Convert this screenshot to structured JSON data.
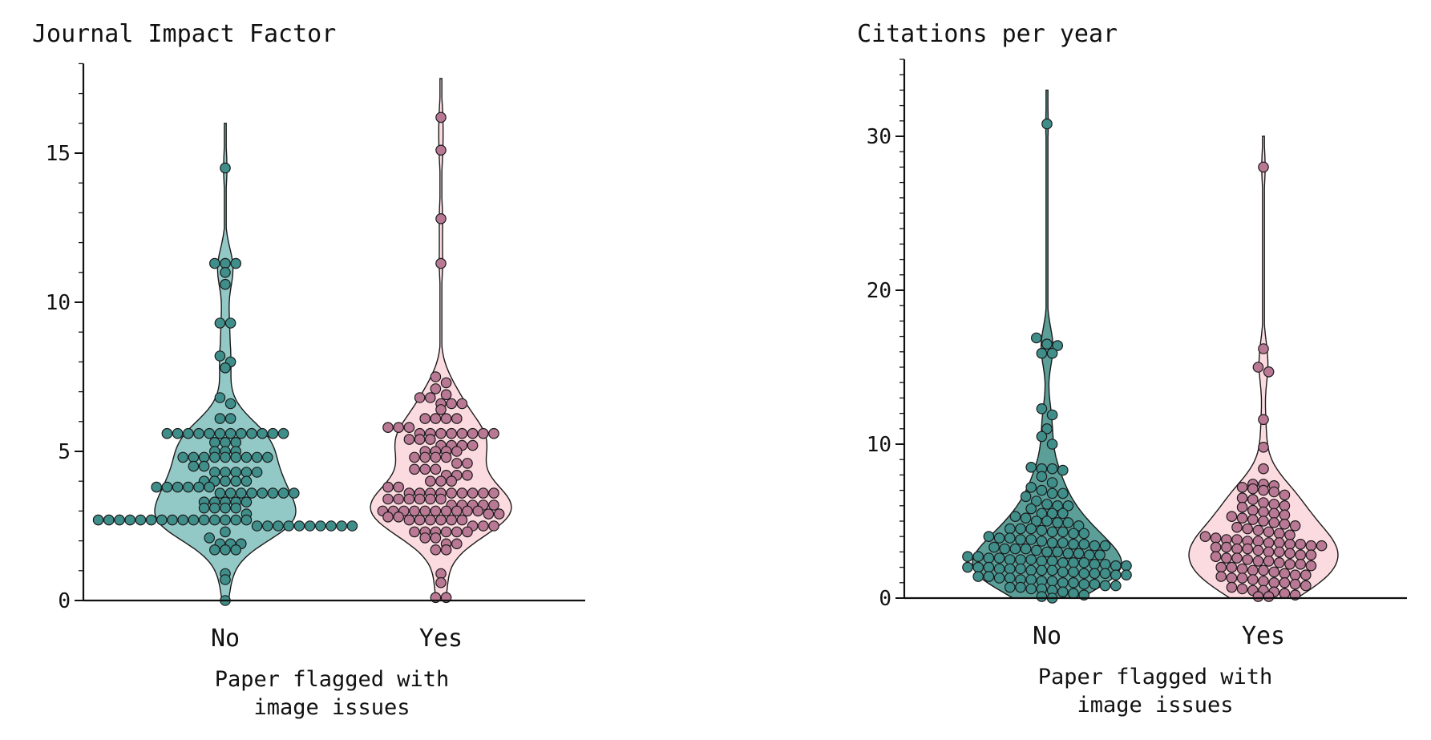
{
  "chart_data": [
    {
      "type": "violin-swarm",
      "title": "Journal Impact Factor",
      "xlabel": [
        "Paper flagged with",
        "image issues"
      ],
      "ylabel": "",
      "categories": [
        "No",
        "Yes"
      ],
      "yticks": [
        "0",
        "5",
        "10",
        "15"
      ],
      "ylim": [
        0,
        18
      ],
      "grid": false,
      "legend": "none",
      "colors": {
        "No": {
          "fill": "#92c9c6",
          "point": "#3f8e8a"
        },
        "Yes": {
          "fill": "#fcdbe0",
          "point": "#b97893"
        }
      },
      "series": [
        {
          "category": "No",
          "violin_extent": [
            0,
            16
          ],
          "values": [
            14.5,
            11.3,
            11.3,
            11.3,
            11.0,
            10.6,
            9.3,
            9.3,
            8.2,
            8.0,
            7.8,
            6.8,
            6.6,
            6.1,
            6.1,
            5.6,
            5.6,
            5.6,
            5.6,
            5.6,
            5.6,
            5.6,
            5.6,
            5.6,
            5.6,
            5.6,
            5.6,
            5.3,
            5.3,
            5.3,
            5.0,
            5.0,
            5.0,
            4.8,
            4.8,
            4.8,
            4.8,
            4.8,
            4.8,
            4.8,
            4.8,
            4.8,
            4.5,
            4.5,
            4.3,
            4.3,
            4.3,
            4.3,
            4.3,
            4.0,
            4.0,
            4.0,
            4.0,
            4.0,
            3.8,
            3.8,
            3.8,
            3.8,
            3.8,
            3.8,
            3.6,
            3.6,
            3.6,
            3.6,
            3.6,
            3.6,
            3.6,
            3.6,
            3.3,
            3.3,
            3.3,
            3.3,
            3.3,
            3.1,
            3.1,
            3.1,
            3.1,
            2.9,
            2.7,
            2.7,
            2.7,
            2.7,
            2.7,
            2.7,
            2.7,
            2.7,
            2.7,
            2.7,
            2.7,
            2.7,
            2.7,
            2.7,
            2.7,
            2.5,
            2.5,
            2.5,
            2.5,
            2.5,
            2.5,
            2.5,
            2.5,
            2.5,
            2.5,
            2.3,
            2.1,
            1.9,
            1.9,
            1.9,
            1.7,
            1.7,
            1.7,
            0.9,
            0.7,
            0.0
          ]
        },
        {
          "category": "Yes",
          "violin_extent": [
            0,
            17.5
          ],
          "values": [
            16.2,
            15.1,
            12.8,
            11.3,
            7.5,
            7.3,
            7.1,
            6.9,
            6.8,
            6.8,
            6.6,
            6.6,
            6.6,
            6.4,
            6.1,
            6.1,
            6.1,
            6.1,
            5.8,
            5.8,
            5.8,
            5.6,
            5.6,
            5.6,
            5.6,
            5.6,
            5.6,
            5.6,
            5.6,
            5.4,
            5.4,
            5.4,
            5.2,
            5.2,
            5.2,
            5.2,
            5.0,
            5.0,
            5.0,
            5.0,
            4.8,
            4.8,
            4.8,
            4.8,
            4.6,
            4.6,
            4.4,
            4.4,
            4.4,
            4.2,
            4.2,
            4.2,
            4.0,
            4.0,
            4.0,
            3.8,
            3.8,
            3.6,
            3.6,
            3.6,
            3.6,
            3.6,
            3.6,
            3.6,
            3.6,
            3.6,
            3.4,
            3.4,
            3.4,
            3.4,
            3.4,
            3.4,
            3.2,
            3.2,
            3.2,
            3.2,
            3.2,
            3.0,
            3.0,
            3.0,
            3.0,
            3.0,
            3.0,
            3.0,
            3.0,
            3.0,
            3.0,
            2.9,
            2.9,
            2.8,
            2.8,
            2.7,
            2.7,
            2.7,
            2.7,
            2.7,
            2.7,
            2.5,
            2.5,
            2.5,
            2.3,
            2.3,
            2.3,
            2.3,
            2.3,
            2.3,
            2.1,
            2.1,
            1.9,
            1.9,
            1.7,
            1.7,
            0.9,
            0.6,
            0.1,
            0.1
          ]
        }
      ]
    },
    {
      "type": "violin-swarm",
      "title": "Citations per year",
      "xlabel": [
        "Paper flagged with",
        "image issues"
      ],
      "ylabel": "",
      "categories": [
        "No",
        "Yes"
      ],
      "yticks": [
        "0",
        "10",
        "20",
        "30"
      ],
      "ylim": [
        0,
        35
      ],
      "grid": false,
      "legend": "none",
      "colors": {
        "No": {
          "fill": "#5c9e98",
          "point": "#3f8e8a"
        },
        "Yes": {
          "fill": "#fcdbe0",
          "point": "#b97893"
        }
      },
      "series": [
        {
          "category": "No",
          "violin_extent": [
            0,
            33
          ],
          "values": [
            30.8,
            16.9,
            16.5,
            16.4,
            15.9,
            15.9,
            12.3,
            11.9,
            11.0,
            10.5,
            10.0,
            8.5,
            8.4,
            8.4,
            8.3,
            7.9,
            7.5,
            7.2,
            7.0,
            6.8,
            6.8,
            6.6,
            6.3,
            6.1,
            6.0,
            6.0,
            5.8,
            5.5,
            5.5,
            5.5,
            5.3,
            5.2,
            5.0,
            5.0,
            4.9,
            4.9,
            4.7,
            4.5,
            4.5,
            4.5,
            4.4,
            4.3,
            4.3,
            4.2,
            4.2,
            4.0,
            3.9,
            3.9,
            3.8,
            3.8,
            3.7,
            3.6,
            3.6,
            3.5,
            3.5,
            3.4,
            3.4,
            3.3,
            3.2,
            3.2,
            3.2,
            3.1,
            3.0,
            3.0,
            2.9,
            2.9,
            2.8,
            2.8,
            2.7,
            2.7,
            2.6,
            2.6,
            2.5,
            2.5,
            2.5,
            2.4,
            2.4,
            2.3,
            2.3,
            2.3,
            2.2,
            2.2,
            2.1,
            2.1,
            2.0,
            2.0,
            2.0,
            1.9,
            1.9,
            1.9,
            1.8,
            1.8,
            1.8,
            1.7,
            1.7,
            1.6,
            1.6,
            1.6,
            1.5,
            1.5,
            1.4,
            1.4,
            1.3,
            1.3,
            1.2,
            1.2,
            1.1,
            1.1,
            1.0,
            1.0,
            0.9,
            0.9,
            0.8,
            0.8,
            0.7,
            0.7,
            0.6,
            0.6,
            0.5,
            0.4,
            0.3,
            0.2,
            0.1,
            0.0
          ]
        },
        {
          "category": "Yes",
          "violin_extent": [
            0,
            30
          ],
          "values": [
            28.0,
            16.2,
            15.0,
            14.7,
            11.6,
            9.8,
            8.4,
            7.4,
            7.4,
            7.3,
            7.2,
            7.1,
            7.0,
            6.9,
            6.7,
            6.5,
            6.4,
            6.2,
            6.1,
            6.0,
            5.9,
            5.7,
            5.6,
            5.5,
            5.4,
            5.3,
            5.2,
            5.1,
            5.0,
            4.9,
            4.8,
            4.7,
            4.6,
            4.5,
            4.4,
            4.3,
            4.2,
            4.1,
            4.0,
            3.9,
            3.8,
            3.8,
            3.7,
            3.7,
            3.6,
            3.6,
            3.5,
            3.5,
            3.4,
            3.4,
            3.3,
            3.3,
            3.2,
            3.2,
            3.1,
            3.0,
            3.0,
            2.9,
            2.8,
            2.8,
            2.7,
            2.6,
            2.6,
            2.5,
            2.4,
            2.4,
            2.3,
            2.2,
            2.2,
            2.1,
            2.0,
            2.0,
            1.9,
            1.8,
            1.8,
            1.7,
            1.6,
            1.5,
            1.5,
            1.4,
            1.3,
            1.3,
            1.2,
            1.1,
            1.0,
            1.0,
            0.9,
            0.8,
            0.7,
            0.6,
            0.5,
            0.5,
            0.4,
            0.3,
            0.2,
            0.1,
            0.1
          ]
        }
      ]
    }
  ]
}
